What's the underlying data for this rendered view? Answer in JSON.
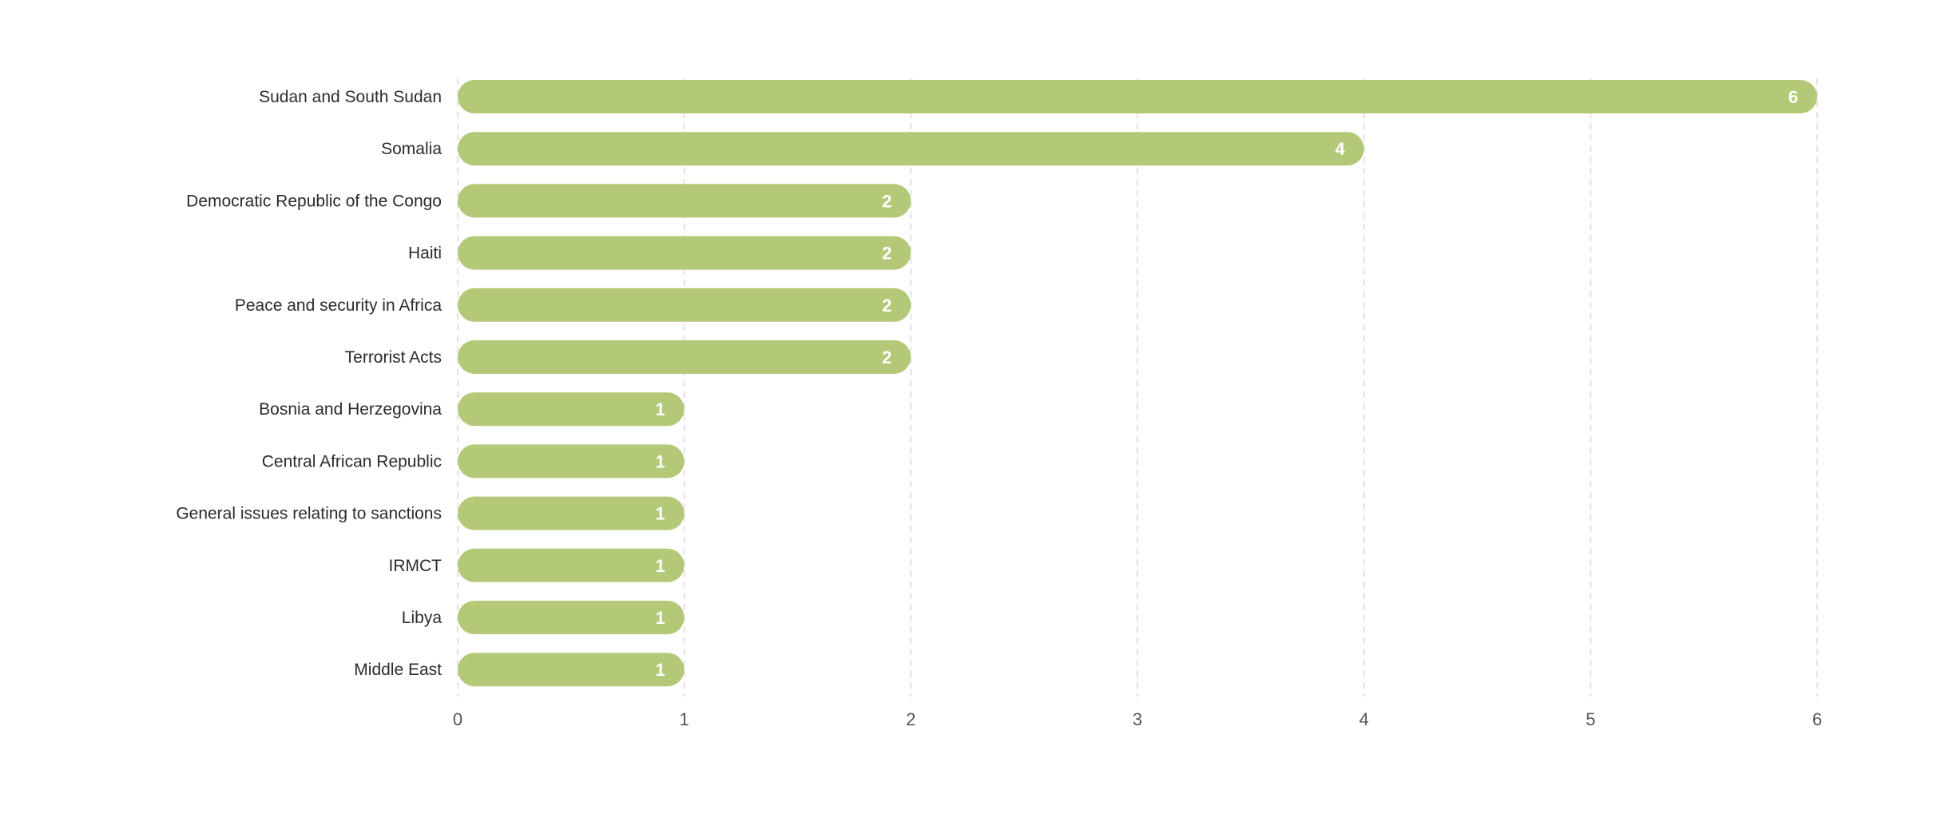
{
  "chart_data": {
    "type": "bar",
    "orientation": "horizontal",
    "categories": [
      "Sudan and South Sudan",
      "Somalia",
      "Democratic Republic of the Congo",
      "Haiti",
      "Peace and security in Africa",
      "Terrorist Acts",
      "Bosnia and Herzegovina",
      "Central African Republic",
      "General issues relating to sanctions",
      "IRMCT",
      "Libya",
      "Middle East"
    ],
    "values": [
      6,
      4,
      2,
      2,
      2,
      2,
      1,
      1,
      1,
      1,
      1,
      1
    ],
    "xlim": [
      0,
      6
    ],
    "xticks": [
      "0",
      "1",
      "2",
      "3",
      "4",
      "5",
      "6"
    ],
    "grid": true,
    "bar_color": "#b3c977",
    "data_labels": true
  }
}
